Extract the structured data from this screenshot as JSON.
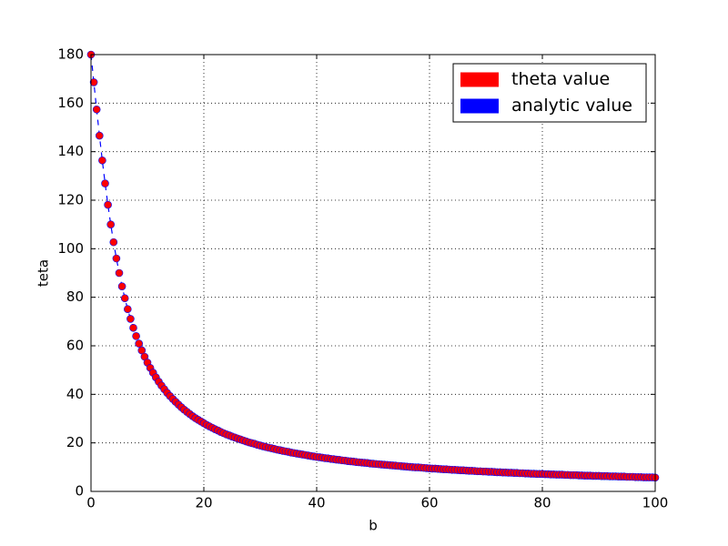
{
  "chart_data": {
    "type": "scatter",
    "xlabel": "b",
    "ylabel": "teta",
    "xlim": [
      0,
      100
    ],
    "ylim": [
      0,
      180
    ],
    "xticks": [
      0,
      20,
      40,
      60,
      80,
      100
    ],
    "yticks": [
      0,
      20,
      40,
      60,
      80,
      100,
      120,
      140,
      160,
      180
    ],
    "grid": true,
    "legend": "upper right",
    "x": [
      0,
      0.5,
      1,
      1.5,
      2,
      2.5,
      3,
      3.5,
      4,
      4.5,
      5,
      5.5,
      6,
      6.5,
      7,
      7.5,
      8,
      8.5,
      9,
      9.5,
      10,
      10.5,
      11,
      11.5,
      12,
      12.5,
      13,
      13.5,
      14,
      14.5,
      15,
      15.5,
      16,
      16.5,
      17,
      17.5,
      18,
      18.5,
      19,
      19.5,
      20,
      20.5,
      21,
      21.5,
      22,
      22.5,
      23,
      23.5,
      24,
      24.5,
      25,
      25.5,
      26,
      26.5,
      27,
      27.5,
      28,
      28.5,
      29,
      29.5,
      30,
      30.5,
      31,
      31.5,
      32,
      32.5,
      33,
      33.5,
      34,
      34.5,
      35,
      35.5,
      36,
      36.5,
      37,
      37.5,
      38,
      38.5,
      39,
      39.5,
      40,
      40.5,
      41,
      41.5,
      42,
      42.5,
      43,
      43.5,
      44,
      44.5,
      45,
      45.5,
      46,
      46.5,
      47,
      47.5,
      48,
      48.5,
      49,
      49.5,
      50,
      50.5,
      51,
      51.5,
      52,
      52.5,
      53,
      53.5,
      54,
      54.5,
      55,
      55.5,
      56,
      56.5,
      57,
      57.5,
      58,
      58.5,
      59,
      59.5,
      60,
      60.5,
      61,
      61.5,
      62,
      62.5,
      63,
      63.5,
      64,
      64.5,
      65,
      65.5,
      66,
      66.5,
      67,
      67.5,
      68,
      68.5,
      69,
      69.5,
      70,
      70.5,
      71,
      71.5,
      72,
      72.5,
      73,
      73.5,
      74,
      74.5,
      75,
      75.5,
      76,
      76.5,
      77,
      77.5,
      78,
      78.5,
      79,
      79.5,
      80,
      80.5,
      81,
      81.5,
      82,
      82.5,
      83,
      83.5,
      84,
      84.5,
      85,
      85.5,
      86,
      86.5,
      87,
      87.5,
      88,
      88.5,
      89,
      89.5,
      90,
      90.5,
      91,
      91.5,
      92,
      92.5,
      93,
      93.5,
      94,
      94.5,
      95,
      95.5,
      96,
      96.5,
      97,
      97.5,
      98,
      98.5,
      99,
      99.5,
      100
    ],
    "series": [
      {
        "name": "theta value",
        "style": "markers",
        "color": "#ff0000",
        "edgecolor": "#0000ff",
        "values": [
          180,
          168.6,
          157.4,
          146.6,
          136.4,
          126.9,
          118.1,
          110,
          102.7,
          96,
          90,
          84.5,
          79.6,
          75.1,
          71.1,
          67.4,
          64,
          60.9,
          58.1,
          55.5,
          53.1,
          50.9,
          48.9,
          47,
          45.2,
          43.6,
          42.1,
          40.6,
          39.3,
          38.1,
          36.9,
          35.8,
          34.7,
          33.7,
          32.8,
          31.9,
          31,
          30.2,
          29.5,
          28.8,
          28.1,
          27.4,
          26.8,
          26.2,
          25.6,
          25.1,
          24.5,
          24,
          23.5,
          23.1,
          22.6,
          22.2,
          21.8,
          21.4,
          21,
          20.6,
          20.2,
          19.9,
          19.6,
          19.2,
          18.9,
          18.6,
          18.3,
          18,
          17.8,
          17.5,
          17.2,
          17,
          16.7,
          16.5,
          16.3,
          16,
          15.8,
          15.6,
          15.4,
          15.2,
          15,
          14.8,
          14.6,
          14.4,
          14.2,
          14.1,
          13.9,
          13.7,
          13.6,
          13.4,
          13.3,
          13.1,
          13,
          12.8,
          12.7,
          12.5,
          12.4,
          12.3,
          12.1,
          12,
          11.9,
          11.8,
          11.7,
          11.5,
          11.4,
          11.3,
          11.2,
          11.1,
          11,
          10.9,
          10.8,
          10.7,
          10.6,
          10.5,
          10.4,
          10.3,
          10.2,
          10.1,
          10,
          9.9,
          9.9,
          9.8,
          9.7,
          9.6,
          9.5,
          9.4,
          9.4,
          9.3,
          9.2,
          9.1,
          9.1,
          9,
          8.9,
          8.9,
          8.8,
          8.7,
          8.7,
          8.6,
          8.5,
          8.5,
          8.4,
          8.3,
          8.3,
          8.2,
          8.2,
          8.1,
          8.1,
          8,
          7.9,
          7.9,
          7.8,
          7.8,
          7.7,
          7.7,
          7.6,
          7.6,
          7.5,
          7.5,
          7.4,
          7.4,
          7.3,
          7.3,
          7.2,
          7.2,
          7.2,
          7.1,
          7.1,
          7,
          7,
          6.9,
          6.9,
          6.9,
          6.8,
          6.8,
          6.7,
          6.7,
          6.7,
          6.6,
          6.6,
          6.5,
          6.5,
          6.5,
          6.4,
          6.4,
          6.4,
          6.3,
          6.3,
          6.3,
          6.2,
          6.2,
          6.2,
          6.1,
          6.1,
          6.1,
          6,
          6,
          6,
          5.9,
          5.9,
          5.9,
          5.8,
          5.8,
          5.8,
          5.8,
          5.7
        ]
      },
      {
        "name": "analytic value",
        "style": "dashed-line",
        "color": "#0000ff",
        "values": [
          180,
          168.6,
          157.4,
          146.6,
          136.4,
          126.9,
          118.1,
          110,
          102.7,
          96,
          90,
          84.5,
          79.6,
          75.1,
          71.1,
          67.4,
          64,
          60.9,
          58.1,
          55.5,
          53.1,
          50.9,
          48.9,
          47,
          45.2,
          43.6,
          42.1,
          40.6,
          39.3,
          38.1,
          36.9,
          35.8,
          34.7,
          33.7,
          32.8,
          31.9,
          31,
          30.2,
          29.5,
          28.8,
          28.1,
          27.4,
          26.8,
          26.2,
          25.6,
          25.1,
          24.5,
          24,
          23.5,
          23.1,
          22.6,
          22.2,
          21.8,
          21.4,
          21,
          20.6,
          20.2,
          19.9,
          19.6,
          19.2,
          18.9,
          18.6,
          18.3,
          18,
          17.8,
          17.5,
          17.2,
          17,
          16.7,
          16.5,
          16.3,
          16,
          15.8,
          15.6,
          15.4,
          15.2,
          15,
          14.8,
          14.6,
          14.4,
          14.2,
          14.1,
          13.9,
          13.7,
          13.6,
          13.4,
          13.3,
          13.1,
          13,
          12.8,
          12.7,
          12.5,
          12.4,
          12.3,
          12.1,
          12,
          11.9,
          11.8,
          11.7,
          11.5,
          11.4,
          11.3,
          11.2,
          11.1,
          11,
          10.9,
          10.8,
          10.7,
          10.6,
          10.5,
          10.4,
          10.3,
          10.2,
          10.1,
          10,
          9.9,
          9.9,
          9.8,
          9.7,
          9.6,
          9.5,
          9.4,
          9.4,
          9.3,
          9.2,
          9.1,
          9.1,
          9,
          8.9,
          8.9,
          8.8,
          8.7,
          8.7,
          8.6,
          8.5,
          8.5,
          8.4,
          8.3,
          8.3,
          8.2,
          8.2,
          8.1,
          8.1,
          8,
          7.9,
          7.9,
          7.8,
          7.8,
          7.7,
          7.7,
          7.6,
          7.6,
          7.5,
          7.5,
          7.4,
          7.4,
          7.3,
          7.3,
          7.2,
          7.2,
          7.2,
          7.1,
          7.1,
          7,
          7,
          6.9,
          6.9,
          6.9,
          6.8,
          6.8,
          6.7,
          6.7,
          6.7,
          6.6,
          6.6,
          6.5,
          6.5,
          6.5,
          6.4,
          6.4,
          6.4,
          6.3,
          6.3,
          6.3,
          6.2,
          6.2,
          6.2,
          6.1,
          6.1,
          6.1,
          6,
          6,
          6,
          5.9,
          5.9,
          5.9,
          5.8,
          5.8,
          5.8,
          5.8,
          5.7
        ]
      }
    ]
  }
}
